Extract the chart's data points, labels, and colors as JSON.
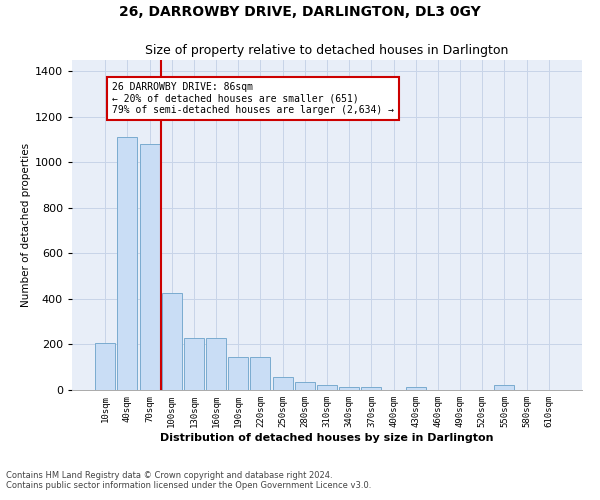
{
  "title": "26, DARROWBY DRIVE, DARLINGTON, DL3 0GY",
  "subtitle": "Size of property relative to detached houses in Darlington",
  "xlabel": "Distribution of detached houses by size in Darlington",
  "ylabel": "Number of detached properties",
  "categories": [
    "10sqm",
    "40sqm",
    "70sqm",
    "100sqm",
    "130sqm",
    "160sqm",
    "190sqm",
    "220sqm",
    "250sqm",
    "280sqm",
    "310sqm",
    "340sqm",
    "370sqm",
    "400sqm",
    "430sqm",
    "460sqm",
    "490sqm",
    "520sqm",
    "550sqm",
    "580sqm",
    "610sqm"
  ],
  "values": [
    205,
    1110,
    1080,
    425,
    230,
    230,
    145,
    145,
    55,
    35,
    20,
    12,
    12,
    0,
    12,
    0,
    0,
    0,
    20,
    0,
    0
  ],
  "bar_color": "#c9ddf5",
  "bar_edge_color": "#7aabcf",
  "vline_color": "#cc0000",
  "annotation_text": "26 DARROWBY DRIVE: 86sqm\n← 20% of detached houses are smaller (651)\n79% of semi-detached houses are larger (2,634) →",
  "annotation_box_color": "#ffffff",
  "annotation_box_edge": "#cc0000",
  "ylim": [
    0,
    1450
  ],
  "yticks": [
    0,
    200,
    400,
    600,
    800,
    1000,
    1200,
    1400
  ],
  "grid_color": "#c8d4e8",
  "bg_color": "#e8eef8",
  "footer_line1": "Contains HM Land Registry data © Crown copyright and database right 2024.",
  "footer_line2": "Contains public sector information licensed under the Open Government Licence v3.0.",
  "title_fontsize": 10,
  "subtitle_fontsize": 9,
  "bar_width": 0.9
}
